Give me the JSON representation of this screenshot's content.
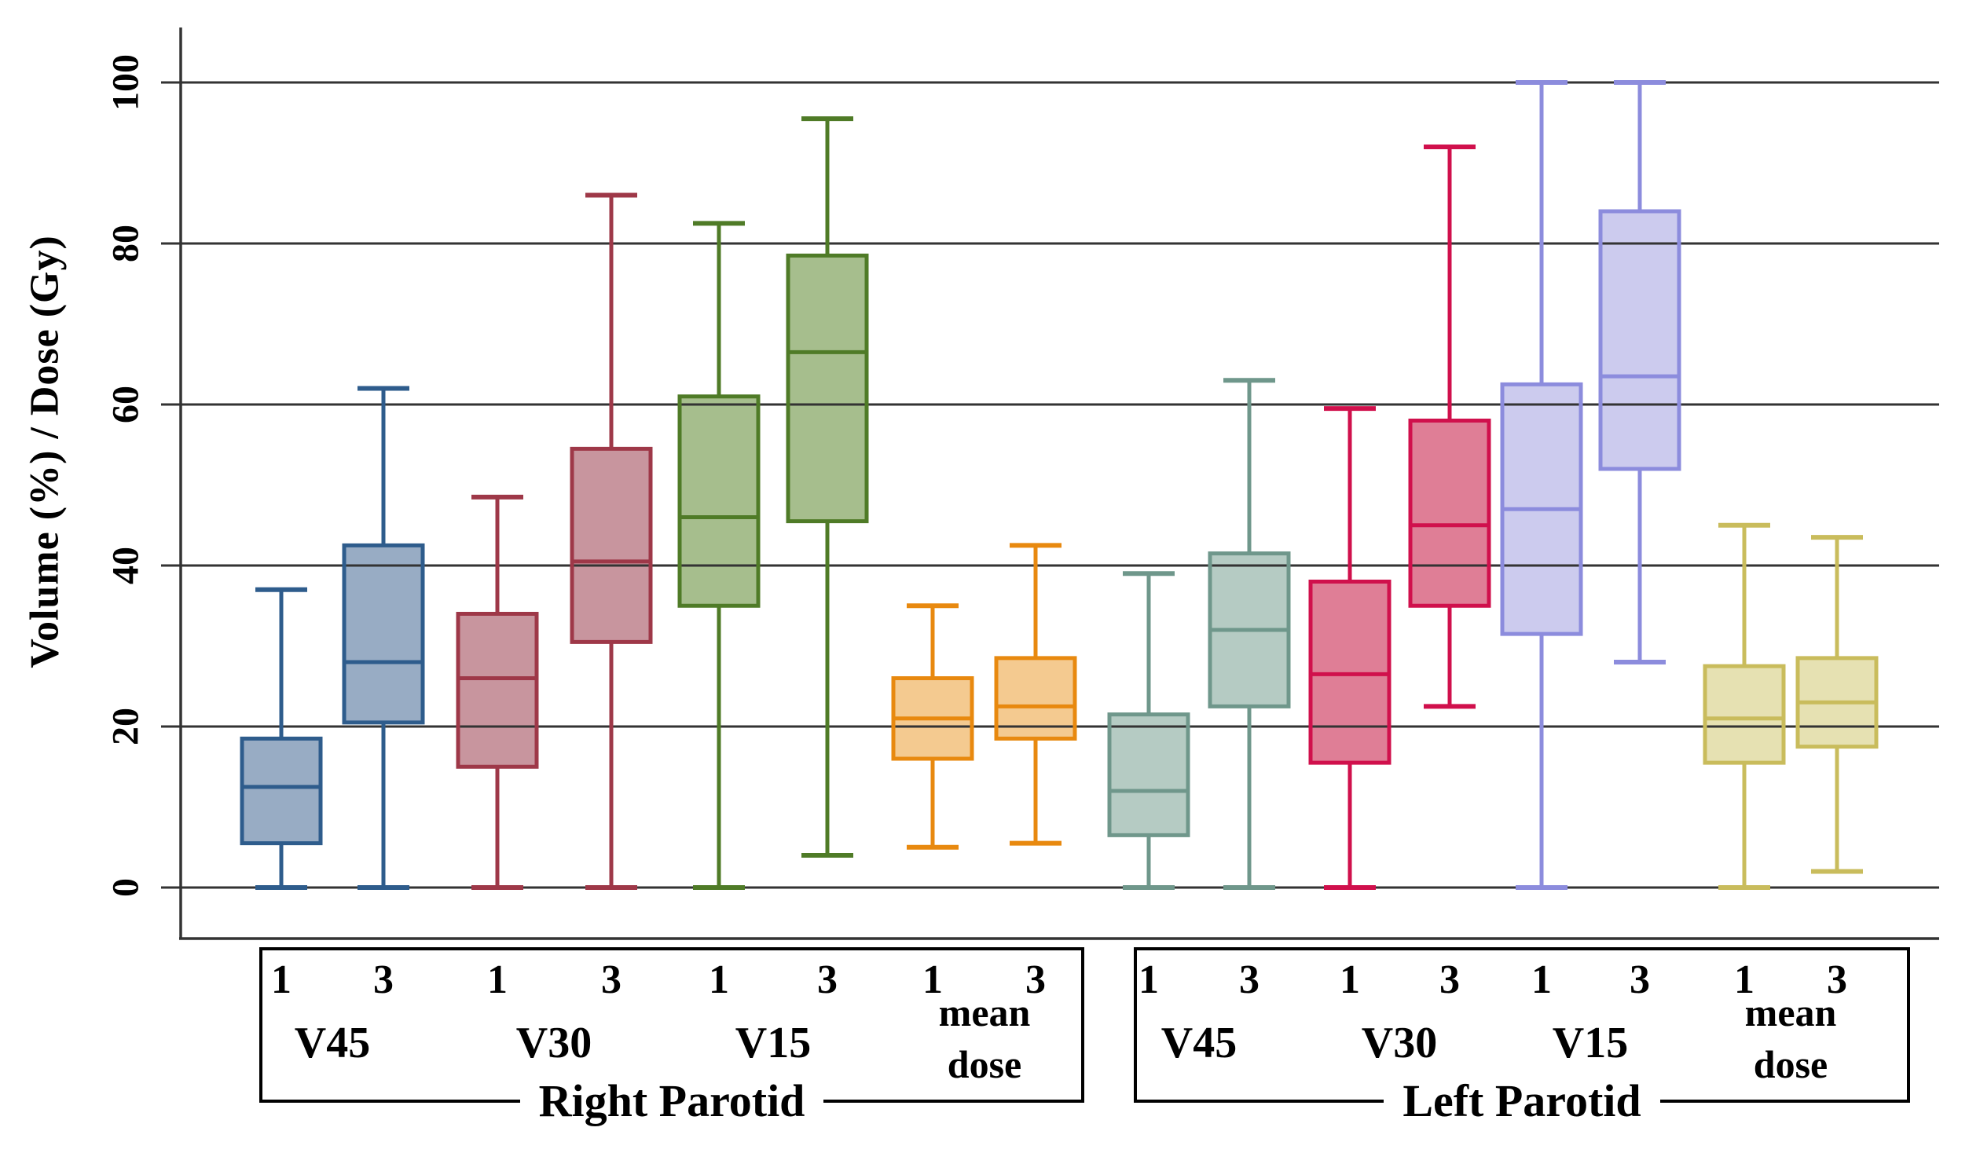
{
  "y_axis": {
    "title": "Volume (%) / Dose (Gy)",
    "tick_labels": [
      "100",
      "80",
      "60",
      "40",
      "20",
      "0"
    ]
  },
  "x_axis": {
    "fraction_labels": [
      "1",
      "3",
      "1",
      "3",
      "1",
      "3",
      "1",
      "3",
      "1",
      "3",
      "1",
      "3",
      "1",
      "3",
      "1",
      "3"
    ],
    "groups": [
      {
        "label": "Right Parotid",
        "categories": [
          "V45",
          "V30",
          "V15",
          "mean dose"
        ]
      },
      {
        "label": "Left Parotid",
        "categories": [
          "V45",
          "V30",
          "V15",
          "mean dose"
        ]
      }
    ]
  },
  "colors": {
    "gridline": "#333333",
    "axis": "#333333",
    "text": "#000000"
  },
  "chart_data": {
    "type": "boxplot",
    "title": "",
    "xlabel": "",
    "ylabel": "Volume (%) / Dose (Gy)",
    "ylim": [
      0,
      100
    ],
    "yticks": [
      0,
      20,
      40,
      60,
      80,
      100
    ],
    "grid": true,
    "legend": false,
    "groups": [
      "Right Parotid",
      "Left Parotid"
    ],
    "categories": [
      "V45",
      "V30",
      "V15",
      "mean dose"
    ],
    "fraction_labels": [
      "1",
      "3"
    ],
    "series": [
      {
        "group": "Right Parotid",
        "category": "V45",
        "fraction": "1",
        "whisker_low": 0,
        "q1": 5.5,
        "median": 12.5,
        "q3": 18.5,
        "whisker_high": 37,
        "fill": "#98ACC4",
        "stroke": "#2E5C8C"
      },
      {
        "group": "Right Parotid",
        "category": "V45",
        "fraction": "3",
        "whisker_low": 0,
        "q1": 20.5,
        "median": 28,
        "q3": 42.5,
        "whisker_high": 62,
        "fill": "#98ACC4",
        "stroke": "#2E5C8C"
      },
      {
        "group": "Right Parotid",
        "category": "V30",
        "fraction": "1",
        "whisker_low": 0,
        "q1": 15,
        "median": 26,
        "q3": 34,
        "whisker_high": 48.5,
        "fill": "#C8959E",
        "stroke": "#9E3848"
      },
      {
        "group": "Right Parotid",
        "category": "V30",
        "fraction": "3",
        "whisker_low": 0,
        "q1": 30.5,
        "median": 40.5,
        "q3": 54.5,
        "whisker_high": 86,
        "fill": "#C8959E",
        "stroke": "#9E3848"
      },
      {
        "group": "Right Parotid",
        "category": "V15",
        "fraction": "1",
        "whisker_low": 0,
        "q1": 35,
        "median": 46,
        "q3": 61,
        "whisker_high": 82.5,
        "fill": "#A6BE8D",
        "stroke": "#4F7B27"
      },
      {
        "group": "Right Parotid",
        "category": "V15",
        "fraction": "3",
        "whisker_low": 4,
        "q1": 45.5,
        "median": 66.5,
        "q3": 78.5,
        "whisker_high": 95.5,
        "fill": "#A6BE8D",
        "stroke": "#4F7B27"
      },
      {
        "group": "Right Parotid",
        "category": "mean dose",
        "fraction": "1",
        "whisker_low": 5,
        "q1": 16,
        "median": 21,
        "q3": 26,
        "whisker_high": 35,
        "fill": "#F4CA90",
        "stroke": "#E8890F"
      },
      {
        "group": "Right Parotid",
        "category": "mean dose",
        "fraction": "3",
        "whisker_low": 5.5,
        "q1": 18.5,
        "median": 22.5,
        "q3": 28.5,
        "whisker_high": 42.5,
        "fill": "#F4CA90",
        "stroke": "#E8890F"
      },
      {
        "group": "Left Parotid",
        "category": "V45",
        "fraction": "1",
        "whisker_low": 0,
        "q1": 6.5,
        "median": 12,
        "q3": 21.5,
        "whisker_high": 39,
        "fill": "#B5CBC3",
        "stroke": "#6F978B"
      },
      {
        "group": "Left Parotid",
        "category": "V45",
        "fraction": "3",
        "whisker_low": 0,
        "q1": 22.5,
        "median": 32,
        "q3": 41.5,
        "whisker_high": 63,
        "fill": "#B5CBC3",
        "stroke": "#6F978B"
      },
      {
        "group": "Left Parotid",
        "category": "V30",
        "fraction": "1",
        "whisker_low": 0,
        "q1": 15.5,
        "median": 26.5,
        "q3": 38,
        "whisker_high": 59.5,
        "fill": "#DF7E96",
        "stroke": "#D0104C"
      },
      {
        "group": "Left Parotid",
        "category": "V30",
        "fraction": "3",
        "whisker_low": 22.5,
        "q1": 35,
        "median": 45,
        "q3": 58,
        "whisker_high": 92,
        "fill": "#DF7E96",
        "stroke": "#D0104C"
      },
      {
        "group": "Left Parotid",
        "category": "V15",
        "fraction": "1",
        "whisker_low": 0,
        "q1": 31.5,
        "median": 47,
        "q3": 62.5,
        "whisker_high": 100,
        "fill": "#CCCBEE",
        "stroke": "#8C8CDD"
      },
      {
        "group": "Left Parotid",
        "category": "V15",
        "fraction": "3",
        "whisker_low": 28,
        "q1": 52,
        "median": 63.5,
        "q3": 84,
        "whisker_high": 100,
        "fill": "#CCCBEE",
        "stroke": "#8C8CDD"
      },
      {
        "group": "Left Parotid",
        "category": "mean dose",
        "fraction": "1",
        "whisker_low": 0,
        "q1": 15.5,
        "median": 21,
        "q3": 27.5,
        "whisker_high": 45,
        "fill": "#E6E1B2",
        "stroke": "#C9BC5C"
      },
      {
        "group": "Left Parotid",
        "category": "mean dose",
        "fraction": "3",
        "whisker_low": 2,
        "q1": 17.5,
        "median": 23,
        "q3": 28.5,
        "whisker_high": 43.5,
        "fill": "#E6E1B2",
        "stroke": "#C9BC5C"
      }
    ]
  }
}
